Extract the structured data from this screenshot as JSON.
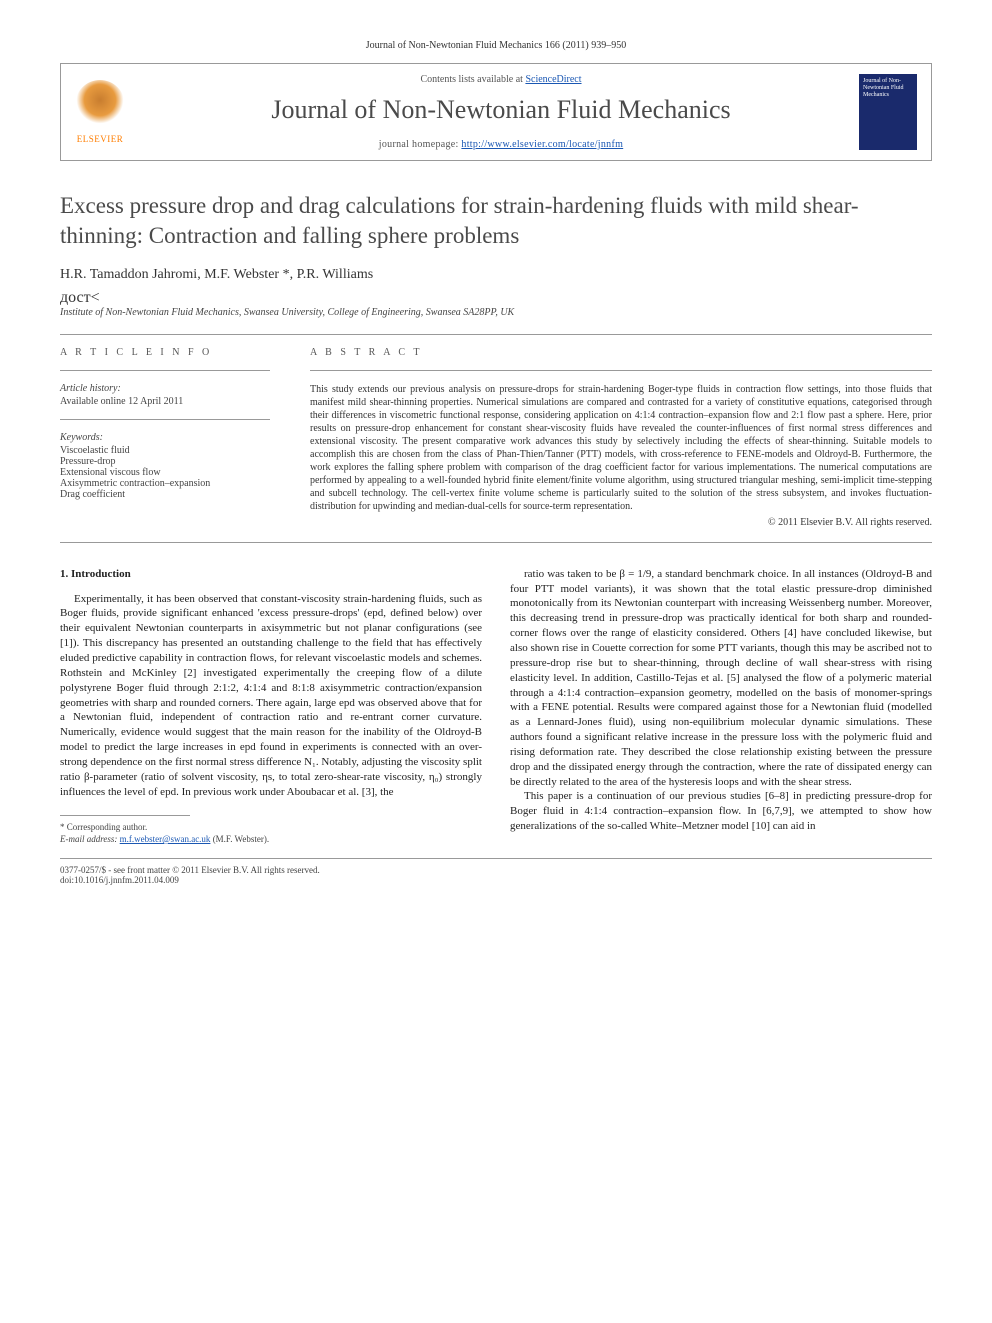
{
  "header": {
    "citation_line": "Journal of Non-Newtonian Fluid Mechanics 166 (2011) 939–950",
    "contents_prefix": "Contents lists available at ",
    "contents_link": "ScienceDirect",
    "journal_name": "Journal of Non-Newtonian Fluid Mechanics",
    "homepage_prefix": "journal homepage: ",
    "homepage_url": "http://www.elsevier.com/locate/jnnfm",
    "publisher_label": "ELSEVIER",
    "cover_text": "Journal of Non-Newtonian Fluid Mechanics"
  },
  "article": {
    "title": "Excess pressure drop and drag calculations for strain-hardening fluids with mild shear-thinning: Contraction and falling sphere problems",
    "authors": "H.R. Tamaddon Jahromi, M.F. Webster *, P.R. Williams",
    "affiliation": "Institute of Non-Newtonian Fluid Mechanics, Swansea University, College of Engineering, Swansea SA28PP, UK"
  },
  "meta": {
    "article_info_head": "A R T I C L E   I N F O",
    "abstract_head": "A B S T R A C T",
    "history_label": "Article history:",
    "history_value": "Available online 12 April 2011",
    "keywords_label": "Keywords:",
    "keywords": [
      "Viscoelastic fluid",
      "Pressure-drop",
      "Extensional viscous flow",
      "Axisymmetric contraction–expansion",
      "Drag coefficient"
    ],
    "abstract_text": "This study extends our previous analysis on pressure-drops for strain-hardening Boger-type fluids in contraction flow settings, into those fluids that manifest mild shear-thinning properties. Numerical simulations are compared and contrasted for a variety of constitutive equations, categorised through their differences in viscometric functional response, considering application on 4:1:4 contraction–expansion flow and 2:1 flow past a sphere. Here, prior results on pressure-drop enhancement for constant shear-viscosity fluids have revealed the counter-influences of first normal stress differences and extensional viscosity. The present comparative work advances this study by selectively including the effects of shear-thinning. Suitable models to accomplish this are chosen from the class of Phan-Thien/Tanner (PTT) models, with cross-reference to FENE-models and Oldroyd-B. Furthermore, the work explores the falling sphere problem with comparison of the drag coefficient factor for various implementations. The numerical computations are performed by appealing to a well-founded hybrid finite element/finite volume algorithm, using structured triangular meshing, semi-implicit time-stepping and subcell technology. The cell-vertex finite volume scheme is particularly suited to the solution of the stress subsystem, and invokes fluctuation-distribution for upwinding and median-dual-cells for source-term representation.",
    "copyright": "© 2011 Elsevier B.V. All rights reserved."
  },
  "body": {
    "section_number": "1.",
    "section_title": "Introduction",
    "col1_p1": "Experimentally, it has been observed that constant-viscosity strain-hardening fluids, such as Boger fluids, provide significant enhanced 'excess pressure-drops' (epd, defined below) over their equivalent Newtonian counterparts in axisymmetric but not planar configurations (see [1]). This discrepancy has presented an outstanding challenge to the field that has effectively eluded predictive capability in contraction flows, for relevant viscoelastic models and schemes. Rothstein and McKinley [2] investigated experimentally the creeping flow of a dilute polystyrene Boger fluid through 2:1:2, 4:1:4 and 8:1:8 axisymmetric contraction/expansion geometries with sharp and rounded corners. There again, large epd was observed above that for a Newtonian fluid, independent of contraction ratio and re-entrant corner curvature. Numerically, evidence would suggest that the main reason for the inability of the Oldroyd-B model to predict the large increases in epd found in experiments is connected with an over-strong dependence on the first normal stress difference N₁. Notably, adjusting the viscosity split ratio β-parameter (ratio of solvent viscosity, ηs, to total zero-shear-rate viscosity, η₀) strongly influences the level of epd. In previous work under Aboubacar et al. [3], the",
    "col2_p1": "ratio was taken to be β = 1/9, a standard benchmark choice. In all instances (Oldroyd-B and four PTT model variants), it was shown that the total elastic pressure-drop diminished monotonically from its Newtonian counterpart with increasing Weissenberg number. Moreover, this decreasing trend in pressure-drop was practically identical for both sharp and rounded-corner flows over the range of elasticity considered. Others [4] have concluded likewise, but also shown rise in Couette correction for some PTT variants, though this may be ascribed not to pressure-drop rise but to shear-thinning, through decline of wall shear-stress with rising elasticity level. In addition, Castillo-Tejas et al. [5] analysed the flow of a polymeric material through a 4:1:4 contraction–expansion geometry, modelled on the basis of monomer-springs with a FENE potential. Results were compared against those for a Newtonian fluid (modelled as a Lennard-Jones fluid), using non-equilibrium molecular dynamic simulations. These authors found a significant relative increase in the pressure loss with the polymeric fluid and rising deformation rate. They described the close relationship existing between the pressure drop and the dissipated energy through the contraction, where the rate of dissipated energy can be directly related to the area of the hysteresis loops and with the shear stress.",
    "col2_p2": "This paper is a continuation of our previous studies [6–8] in predicting pressure-drop for Boger fluid in 4:1:4 contraction–expansion flow. In [6,7,9], we attempted to show how generalizations of the so-called White–Metzner model [10] can aid in"
  },
  "footnote": {
    "corresponding": "* Corresponding author.",
    "email_label": "E-mail address: ",
    "email": "m.f.webster@swan.ac.uk",
    "email_suffix": " (M.F. Webster)."
  },
  "footer": {
    "line1": "0377-0257/$ - see front matter © 2011 Elsevier B.V. All rights reserved.",
    "line2": "doi:10.1016/j.jnnfm.2011.04.009"
  },
  "colors": {
    "link": "#1a57b3",
    "text": "#333333",
    "heading": "#4a4a4a",
    "rule": "#999999",
    "elsevier_orange": "#ff7d00",
    "cover_bg": "#1a2a6c"
  },
  "typography": {
    "title_fontsize": 23,
    "journal_name_fontsize": 26,
    "body_fontsize": 11,
    "meta_fontsize": 10,
    "footnote_fontsize": 9
  }
}
